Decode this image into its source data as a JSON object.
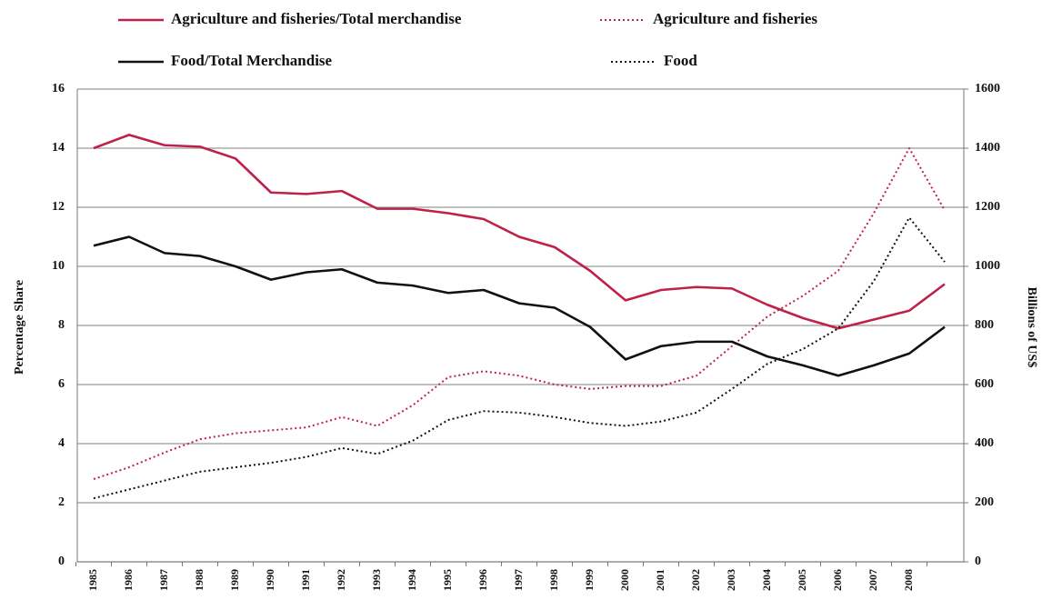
{
  "chart_data": {
    "type": "line",
    "y_label": "Percentage Share",
    "y2_label": "Billions of US$",
    "categories": [
      "1985",
      "1986",
      "1987",
      "1988",
      "1989",
      "1990",
      "1991",
      "1992",
      "1993",
      "1994",
      "1995",
      "1996",
      "1997",
      "1998",
      "1999",
      "2000",
      "2001",
      "2002",
      "2003",
      "2004",
      "2005",
      "2006",
      "2007",
      "2008",
      null
    ],
    "series": [
      {
        "name": "Agriculture and fisheries/Total merchandise",
        "color": "#c0214a",
        "style": "solid",
        "values": [
          14.0,
          14.45,
          14.1,
          14.05,
          13.65,
          12.5,
          12.45,
          12.55,
          11.95,
          11.95,
          11.8,
          11.6,
          11.0,
          10.65,
          9.85,
          8.85,
          9.2,
          9.3,
          9.25,
          8.7,
          8.25,
          7.9,
          8.2,
          8.5,
          9.4
        ]
      },
      {
        "name": "Agriculture and fisheries",
        "color": "#c0214a",
        "style": "dotted",
        "axis": "y2",
        "values": [
          280,
          320,
          370,
          415,
          435,
          445,
          455,
          490,
          460,
          530,
          625,
          645,
          630,
          600,
          585,
          595,
          595,
          630,
          730,
          830,
          900,
          985,
          1180,
          1400,
          1190
        ]
      },
      {
        "name": "Food/Total Merchandise",
        "color": "#111111",
        "style": "solid",
        "values": [
          10.7,
          11.0,
          10.45,
          10.35,
          10.0,
          9.55,
          9.8,
          9.9,
          9.45,
          9.35,
          9.1,
          9.2,
          8.75,
          8.6,
          7.95,
          6.85,
          7.3,
          7.45,
          7.45,
          6.95,
          6.65,
          6.3,
          6.65,
          7.05,
          7.95
        ]
      },
      {
        "name": "Food",
        "color": "#111111",
        "style": "dotted",
        "axis": "y2",
        "values": [
          215,
          245,
          275,
          305,
          320,
          335,
          355,
          385,
          365,
          410,
          480,
          510,
          505,
          490,
          470,
          460,
          475,
          505,
          585,
          670,
          720,
          790,
          950,
          1165,
          1015
        ]
      }
    ],
    "ylim": [
      0,
      16
    ],
    "yticks": [
      0,
      2,
      4,
      6,
      8,
      10,
      12,
      14,
      16
    ],
    "y2lim": [
      0,
      1600
    ],
    "y2ticks": [
      0,
      200,
      400,
      600,
      800,
      1000,
      1200,
      1400,
      1600
    ],
    "grid": true,
    "legend": "top"
  }
}
